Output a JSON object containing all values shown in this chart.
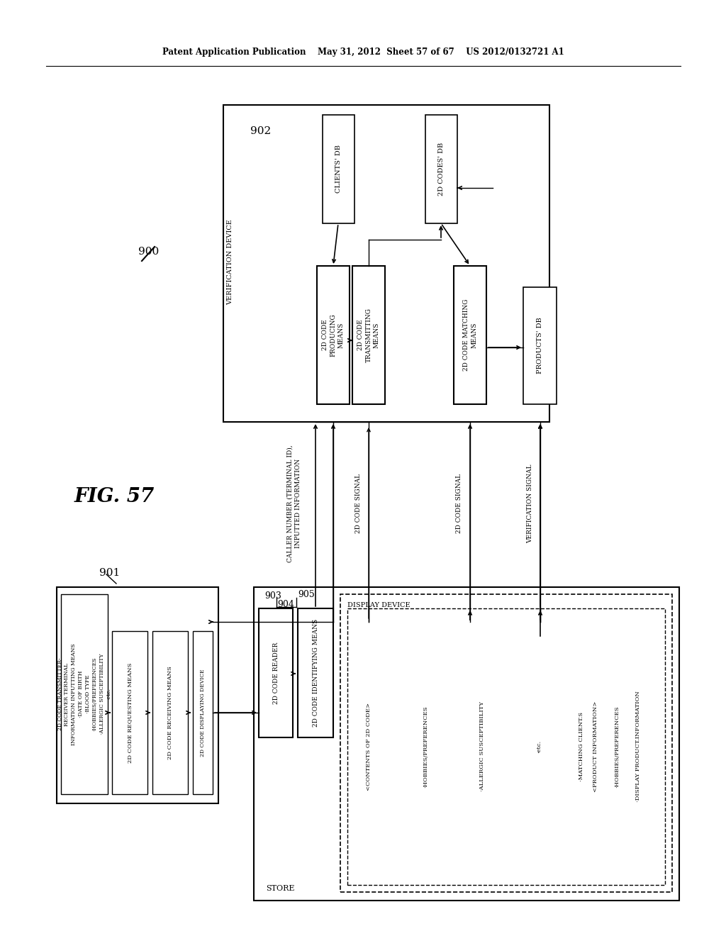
{
  "header": "Patent Application Publication    May 31, 2012  Sheet 57 of 67    US 2012/0132721 A1",
  "fig_label": "FIG. 57",
  "background_color": "#ffffff",
  "labels": {
    "900": "900",
    "902": "902",
    "901": "901",
    "verif_device": "VERIFICATION DEVICE",
    "clients_db": "CLIENTS' DB",
    "codes_db": "2D CODES' DB",
    "producing": "2D CODE\nPRODUCING\nMEANS",
    "transmitting": "2D CODE\nTRANSMITTING\nMEANS",
    "matching": "2D CODE MATCHING\nMEANS",
    "products_db": "PRODUCTS' DB",
    "terminal_box": "2D CODE TRANSMITTER-\nRECEIVER TERMINAL\nINFORMATION INPUTTING MEANS\n·DATE OF BIRTH\n·BLOOD TYPE\n·HOBBIES/PREFERENCES\n·ALLERGIC SUSCEPTIBILITY\n·etc.",
    "requesting": "2D CODE REQUESTING MEANS",
    "receiving": "2D CODE RECEIVING MEANS",
    "displaying": "2D CODE DISPLAYING DEVICE",
    "store": "STORE",
    "reader": "2D CODE READER",
    "identifying": "2D CODE IDENTIFYING MEANS",
    "display_device": "DISPLAY DEVICE",
    "display_content1": "<CONTENTS OF 2D CODE>",
    "display_content2": "·HOBBIES/PREFERENCES",
    "display_content3": "·ALLERGIC SUSCEPTIBILITY",
    "display_content4": "·etc.",
    "display_content5": "<PRODUCT INFORMATION>",
    "display_content6": "·DISPLAY PRODUCT.INFORMATION",
    "display_content7": "·MATCHING CLIENT.S",
    "display_content8": "·HOBBIES/PREFERENCES",
    "caller_info": "CALLER NUMBER (TERMINAL ID),\nINPUTTED INFORMATION",
    "signal_2d": "2D CODE SIGNAL",
    "signal_2d2": "2D CODE SIGNAL",
    "verif_signal": "VERIFICATION SIGNAL",
    "903": "903",
    "904": "904",
    "905": "905"
  }
}
